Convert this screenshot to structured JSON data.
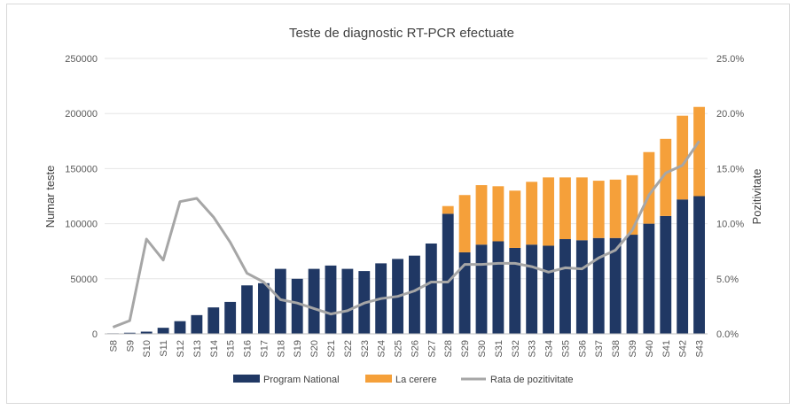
{
  "chart_data": {
    "type": "bar",
    "title": "Teste de diagnostic RT-PCR efectuate",
    "ylabel": "Numar teste",
    "y2label": "Pozitivitate",
    "ylim": [
      0,
      250000
    ],
    "y2lim": [
      0,
      25
    ],
    "yticks": [
      "0",
      "50000",
      "100000",
      "150000",
      "200000",
      "250000"
    ],
    "y2ticks": [
      "0.0%",
      "5.0%",
      "10.0%",
      "15.0%",
      "20.0%",
      "25.0%"
    ],
    "stacked": true,
    "grid": true,
    "legend_position": "bottom",
    "categories": [
      "S8",
      "S9",
      "S10",
      "S11",
      "S12",
      "S13",
      "S14",
      "S15",
      "S16",
      "S17",
      "S18",
      "S19",
      "S20",
      "S21",
      "S22",
      "S23",
      "S24",
      "S25",
      "S26",
      "S27",
      "S28",
      "S29",
      "S30",
      "S31",
      "S32",
      "S33",
      "S34",
      "S35",
      "S36",
      "S37",
      "S38",
      "S39",
      "S40",
      "S41",
      "S42",
      "S43"
    ],
    "series": [
      {
        "name": "Program National",
        "color": "#203864",
        "values": [
          500,
          1000,
          2000,
          5500,
          11500,
          17000,
          24000,
          29000,
          44000,
          46000,
          59000,
          50000,
          59000,
          62000,
          59000,
          57000,
          64000,
          68000,
          71000,
          82000,
          109000,
          74000,
          81000,
          84000,
          78000,
          81000,
          80000,
          86000,
          85000,
          87000,
          87000,
          90000,
          100000,
          107000,
          122000,
          125000
        ]
      },
      {
        "name": "La cerere",
        "color": "#f5a03a",
        "values": [
          0,
          0,
          0,
          0,
          0,
          0,
          0,
          0,
          0,
          0,
          0,
          0,
          0,
          0,
          0,
          0,
          0,
          0,
          0,
          0,
          7000,
          52000,
          54000,
          50000,
          52000,
          57000,
          62000,
          56000,
          57000,
          52000,
          53000,
          54000,
          65000,
          70000,
          76000,
          81000
        ]
      }
    ],
    "line_series": {
      "name": "Rata de pozitivitate",
      "color": "#a6a6a6",
      "axis": "right",
      "values": [
        0.6,
        1.2,
        8.6,
        6.7,
        12.0,
        12.3,
        10.6,
        8.3,
        5.5,
        4.7,
        3.1,
        2.8,
        2.3,
        1.8,
        2.1,
        2.8,
        3.2,
        3.4,
        3.9,
        4.7,
        4.7,
        6.3,
        6.3,
        6.4,
        6.4,
        6.1,
        5.6,
        6.0,
        5.9,
        6.9,
        7.6,
        9.4,
        12.6,
        14.6,
        15.3,
        17.5
      ]
    }
  }
}
